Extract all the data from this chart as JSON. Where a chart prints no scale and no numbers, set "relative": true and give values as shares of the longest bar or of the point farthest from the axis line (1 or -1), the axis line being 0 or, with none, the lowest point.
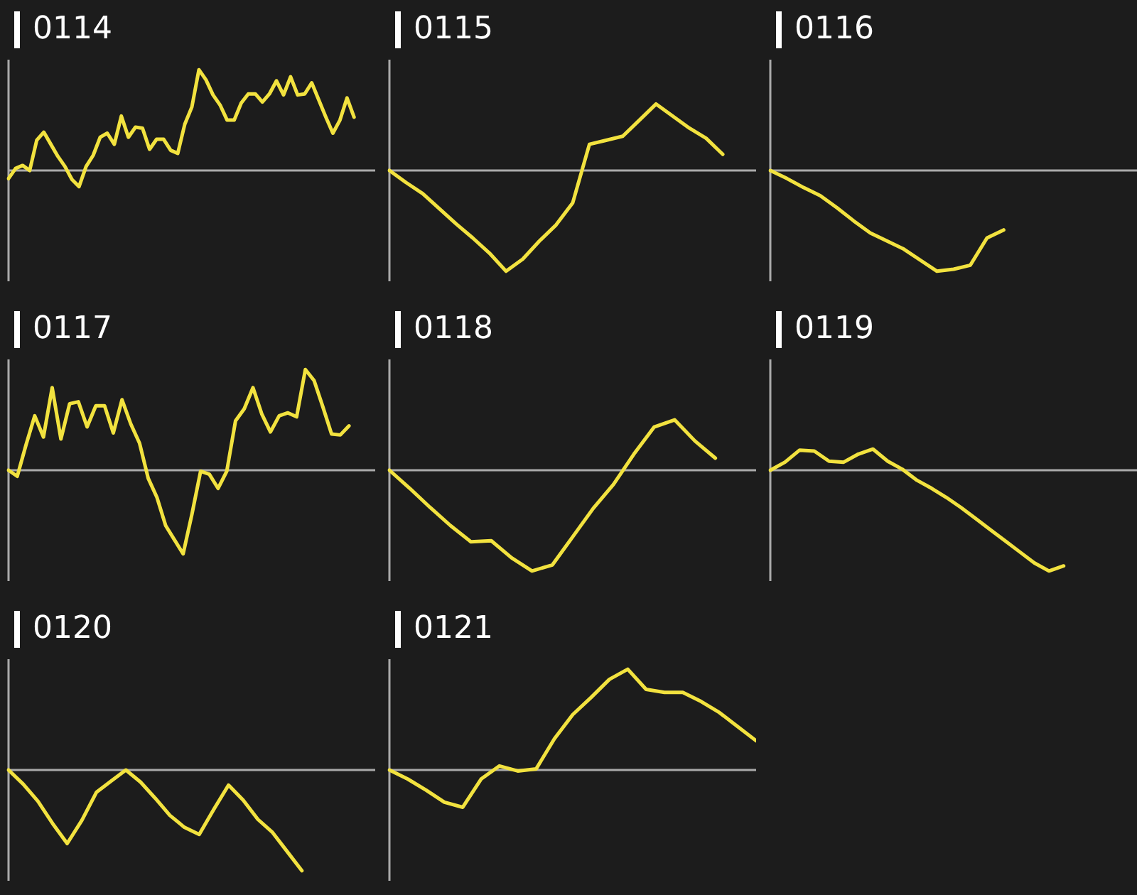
{
  "chart_data": [
    {
      "type": "line",
      "title": "0114",
      "relative": true,
      "color": "#f2e23f",
      "categories": [
        null,
        null,
        null,
        null,
        null,
        null,
        null,
        null,
        null,
        null,
        null,
        null,
        null,
        null,
        null,
        null,
        null,
        null,
        null,
        null,
        null,
        null,
        null,
        null,
        null,
        null,
        null,
        null,
        null,
        null,
        null,
        null,
        null,
        null,
        null,
        null,
        null,
        null,
        null,
        null,
        null,
        null,
        null,
        null,
        null,
        null,
        null,
        null,
        null,
        null,
        null,
        null,
        null
      ],
      "values": [
        -0.08,
        0.02,
        0.05,
        0.0,
        0.3,
        0.38,
        0.26,
        0.14,
        0.04,
        -0.09,
        -0.16,
        0.04,
        0.15,
        0.33,
        0.37,
        0.26,
        0.54,
        0.33,
        0.43,
        0.42,
        0.21,
        0.31,
        0.31,
        0.2,
        0.17,
        0.46,
        0.63,
        1,
        0.9,
        0.75,
        0.65,
        0.5,
        0.5,
        0.67,
        0.76,
        0.76,
        0.68,
        0.76,
        0.89,
        0.75,
        0.93,
        0.75,
        0.76,
        0.87,
        0.7,
        0.53,
        0.37,
        0.5,
        0.72,
        0.53,
        null,
        null,
        null
      ]
    },
    {
      "type": "line",
      "title": "0115",
      "relative": true,
      "color": "#f2e23f",
      "categories": [
        null,
        null,
        null,
        null,
        null,
        null,
        null,
        null,
        null,
        null,
        null,
        null,
        null,
        null,
        null,
        null,
        null,
        null,
        null,
        null,
        null,
        null,
        null
      ],
      "values": [
        0,
        -0.12,
        -0.23,
        -0.38,
        -0.53,
        -0.67,
        -0.82,
        -1,
        -0.88,
        -0.7,
        -0.54,
        -0.32,
        0.26,
        0.3,
        0.34,
        0.5,
        0.66,
        0.54,
        0.42,
        0.32,
        0.16,
        null,
        null
      ]
    },
    {
      "type": "line",
      "title": "0116",
      "relative": true,
      "color": "#f2e23f",
      "categories": [
        null,
        null,
        null,
        null,
        null,
        null,
        null,
        null,
        null,
        null,
        null,
        null,
        null,
        null,
        null,
        null,
        null,
        null,
        null,
        null,
        null,
        null,
        null
      ],
      "values": [
        0,
        -0.08,
        -0.17,
        -0.25,
        -0.37,
        -0.5,
        -0.62,
        -0.7,
        -0.78,
        -0.89,
        -1,
        -0.98,
        -0.94,
        -0.67,
        -0.59,
        null,
        null,
        null,
        null,
        null,
        null,
        null,
        null
      ]
    },
    {
      "type": "line",
      "title": "0117",
      "relative": true,
      "color": "#f2e23f",
      "categories": [
        null,
        null,
        null,
        null,
        null,
        null,
        null,
        null,
        null,
        null,
        null,
        null,
        null,
        null,
        null,
        null,
        null,
        null,
        null,
        null,
        null,
        null,
        null,
        null,
        null,
        null,
        null,
        null,
        null,
        null,
        null,
        null,
        null,
        null,
        null,
        null,
        null,
        null,
        null,
        null,
        null,
        null,
        null
      ],
      "values": [
        0,
        -0.06,
        0.25,
        0.54,
        0.33,
        0.82,
        0.31,
        0.66,
        0.68,
        0.43,
        0.64,
        0.64,
        0.37,
        0.7,
        0.46,
        0.27,
        -0.08,
        -0.27,
        -0.55,
        -0.69,
        -0.83,
        -0.44,
        -0.01,
        -0.04,
        -0.18,
        -0.01,
        0.49,
        0.61,
        0.82,
        0.56,
        0.38,
        0.54,
        0.57,
        0.53,
        1,
        0.89,
        0.63,
        0.36,
        0.35,
        0.44,
        null,
        null,
        null
      ]
    },
    {
      "type": "line",
      "title": "0118",
      "relative": true,
      "color": "#f2e23f",
      "categories": [
        null,
        null,
        null,
        null,
        null,
        null,
        null,
        null,
        null,
        null,
        null,
        null,
        null,
        null,
        null,
        null,
        null,
        null,
        null
      ],
      "values": [
        0,
        -0.18,
        -0.37,
        -0.55,
        -0.71,
        -0.7,
        -0.87,
        -1,
        -0.94,
        -0.66,
        -0.38,
        -0.14,
        0.16,
        0.43,
        0.5,
        0.29,
        0.12,
        null,
        null
      ]
    },
    {
      "type": "line",
      "title": "0119",
      "relative": true,
      "color": "#f2e23f",
      "categories": [
        null,
        null,
        null,
        null,
        null,
        null,
        null,
        null,
        null,
        null,
        null,
        null,
        null,
        null,
        null,
        null,
        null,
        null,
        null,
        null,
        null,
        null,
        null,
        null,
        null,
        null
      ],
      "values": [
        0,
        0.08,
        0.2,
        0.19,
        0.09,
        0.08,
        0.16,
        0.21,
        0.09,
        0.01,
        -0.1,
        -0.18,
        -0.27,
        -0.37,
        -0.48,
        -0.59,
        -0.7,
        -0.81,
        -0.92,
        -1,
        -0.95,
        null,
        null,
        null,
        null,
        null
      ]
    },
    {
      "type": "line",
      "title": "0120",
      "relative": true,
      "color": "#f2e23f",
      "categories": [
        null,
        null,
        null,
        null,
        null,
        null,
        null,
        null,
        null,
        null,
        null,
        null,
        null,
        null,
        null,
        null,
        null,
        null,
        null,
        null,
        null,
        null,
        null,
        null,
        null,
        null
      ],
      "values": [
        0,
        -0.14,
        -0.31,
        -0.53,
        -0.73,
        -0.5,
        -0.22,
        -0.11,
        0,
        -0.12,
        -0.28,
        -0.45,
        -0.57,
        -0.64,
        -0.39,
        -0.15,
        -0.3,
        -0.49,
        -0.62,
        -0.81,
        -1,
        null,
        null,
        null,
        null,
        null
      ]
    },
    {
      "type": "line",
      "title": "0121",
      "relative": true,
      "color": "#f2e23f",
      "categories": [
        null,
        null,
        null,
        null,
        null,
        null,
        null,
        null,
        null,
        null,
        null,
        null,
        null,
        null,
        null,
        null,
        null,
        null,
        null,
        null,
        null
      ],
      "values": [
        0,
        -0.09,
        -0.2,
        -0.32,
        -0.37,
        -0.09,
        0.04,
        -0.01,
        0.01,
        0.31,
        0.55,
        0.72,
        0.9,
        1,
        0.8,
        0.77,
        0.77,
        0.68,
        0.57,
        0.43,
        0.29
      ]
    }
  ]
}
